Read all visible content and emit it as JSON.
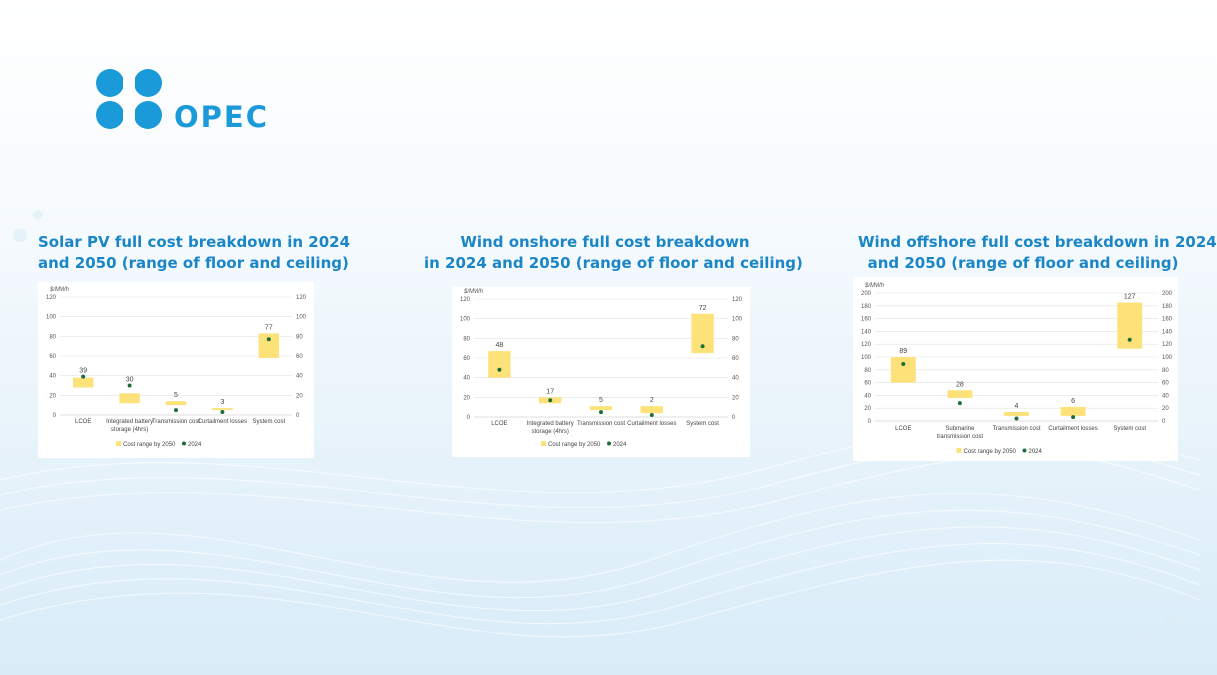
{
  "brand": {
    "name": "OPEC"
  },
  "colors": {
    "accent": "#1a86c8",
    "logo": "#1a9ad9",
    "range": "#fde27a",
    "point": "#1e6e3c"
  },
  "charts": [
    {
      "title_line1": "Solar PV full cost breakdown in 2024",
      "title_line2": "and 2050 (range of floor and ceiling)"
    },
    {
      "title_line1": "Wind onshore full cost breakdown",
      "title_line2": "in 2024 and 2050 (range of floor and ceiling)"
    },
    {
      "title_line1": "Wind offshore full cost breakdown in 2024",
      "title_line2": "and 2050 (range of floor and ceiling)"
    }
  ],
  "chart_data": [
    {
      "type": "floating-bar-with-points",
      "title": "Solar PV full cost breakdown in 2024 and 2050 (range of floor and ceiling)",
      "ylabel": "$/MWh",
      "ylim": [
        0,
        120
      ],
      "yticks": [
        0,
        20,
        40,
        60,
        80,
        100,
        120
      ],
      "categories": [
        [
          "LCOE"
        ],
        [
          "Integrated battery",
          "storage (4hrs)"
        ],
        [
          "Transmission cost"
        ],
        [
          "Curtailment losses"
        ],
        [
          "System cost"
        ]
      ],
      "range_2050": [
        [
          28,
          38
        ],
        [
          12,
          22
        ],
        [
          10,
          14
        ],
        [
          5,
          7
        ],
        [
          58,
          83
        ]
      ],
      "values_2024": [
        39,
        30,
        5,
        3,
        77
      ],
      "legend": [
        "Cost range by 2050",
        "2024"
      ]
    },
    {
      "type": "floating-bar-with-points",
      "title": "Wind onshore full cost breakdown in 2024 and 2050 (range of floor and ceiling)",
      "ylabel": "$/MWh",
      "ylim": [
        0,
        120
      ],
      "yticks": [
        0,
        20,
        40,
        60,
        80,
        100,
        120
      ],
      "categories": [
        [
          "LCOE"
        ],
        [
          "Integrated battery",
          "storage (4hrs)"
        ],
        [
          "Transmission cost"
        ],
        [
          "Curtailment losses"
        ],
        [
          "System cost"
        ]
      ],
      "range_2050": [
        [
          40,
          67
        ],
        [
          14,
          20
        ],
        [
          7,
          11
        ],
        [
          4,
          11
        ],
        [
          65,
          105
        ]
      ],
      "values_2024": [
        48,
        17,
        5,
        2,
        72
      ],
      "legend": [
        "Cost range by 2050",
        "2024"
      ]
    },
    {
      "type": "floating-bar-with-points",
      "title": "Wind offshore full cost breakdown in 2024 and 2050 (range of floor and ceiling)",
      "ylabel": "$/MWh",
      "ylim": [
        0,
        200
      ],
      "yticks": [
        0,
        20,
        40,
        60,
        80,
        100,
        120,
        140,
        160,
        180,
        200
      ],
      "categories": [
        [
          "LCOE"
        ],
        [
          "Submarine",
          "transmission cost"
        ],
        [
          "Transmission cost"
        ],
        [
          "Curtailment losses"
        ],
        [
          "System cost"
        ]
      ],
      "range_2050": [
        [
          60,
          100
        ],
        [
          36,
          48
        ],
        [
          8,
          14
        ],
        [
          8,
          22
        ],
        [
          113,
          185
        ]
      ],
      "values_2024": [
        89,
        28,
        4,
        6,
        127
      ],
      "legend": [
        "Cost range by 2050",
        "2024"
      ]
    }
  ]
}
